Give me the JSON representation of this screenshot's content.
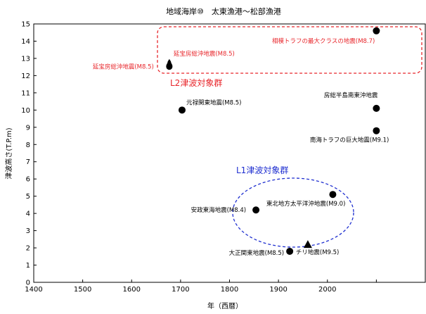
{
  "chart_data": {
    "type": "scatter",
    "title": "地域海岸⑩　太東漁港～松部漁港",
    "xlabel": "年（西暦）",
    "ylabel": "津波高さ(T.P.m)",
    "xlim": [
      1400,
      2200
    ],
    "ylim": [
      0,
      15
    ],
    "x_ticks": [
      1400,
      1500,
      1600,
      1700,
      1800,
      1900,
      2000
    ],
    "y_ticks": [
      0,
      1,
      2,
      3,
      4,
      5,
      6,
      7,
      8,
      9,
      10,
      11,
      12,
      13,
      14,
      15
    ],
    "grid": false,
    "points": [
      {
        "label": "元禄関東地震(M8.5)",
        "x": 1703,
        "y": 10.0,
        "marker": "circle",
        "color": "#000000",
        "label_color": "#000000",
        "group": "L2"
      },
      {
        "label": "延宝房総沖地震(M8.5)",
        "x": 1677,
        "y": 12.6,
        "marker": "drop",
        "color": "#000000",
        "label_color": "#e8262b",
        "group": "L2"
      },
      {
        "label": "延宝房総沖地震(M8.5)",
        "x": 1677,
        "y": 12.8,
        "marker": "drop-small",
        "color": "#000000",
        "label_color": "#e8262b",
        "group": "L2"
      },
      {
        "label": "相模トラフの最大クラスの地震(M8.7)",
        "x": 2100,
        "y": 14.6,
        "marker": "circle",
        "color": "#000000",
        "label_color": "#e8262b",
        "group": "L2"
      },
      {
        "label": "房総半島南東沖地震",
        "x": 2100,
        "y": 10.1,
        "marker": "circle",
        "color": "#000000",
        "label_color": "#000000",
        "group": "L2"
      },
      {
        "label": "南海トラフの巨大地震(M9.1)",
        "x": 2100,
        "y": 8.8,
        "marker": "circle",
        "color": "#000000",
        "label_color": "#000000",
        "group": "L2"
      },
      {
        "label": "東北地方太平洋沖地震(M9.0)",
        "x": 2011,
        "y": 5.1,
        "marker": "circle",
        "color": "#000000",
        "label_color": "#000000",
        "group": "L1"
      },
      {
        "label": "安政東海地震(M8.4)",
        "x": 1854,
        "y": 4.2,
        "marker": "circle",
        "color": "#000000",
        "label_color": "#000000",
        "group": "L1"
      },
      {
        "label": "大正関東地震(M8.5)",
        "x": 1923,
        "y": 1.8,
        "marker": "circle",
        "color": "#000000",
        "label_color": "#000000",
        "group": "L1"
      },
      {
        "label": "チリ地震(M9.5)",
        "x": 1960,
        "y": 2.2,
        "marker": "triangle",
        "color": "#000000",
        "label_color": "#000000",
        "group": "L1"
      }
    ],
    "groups": [
      {
        "name": "L2津波対象群",
        "color": "#e8262b",
        "shape": "rounded-rect",
        "style": "dashed"
      },
      {
        "name": "L1津波対象群",
        "color": "#1f2fd0",
        "shape": "ellipse",
        "style": "dashed"
      }
    ]
  }
}
